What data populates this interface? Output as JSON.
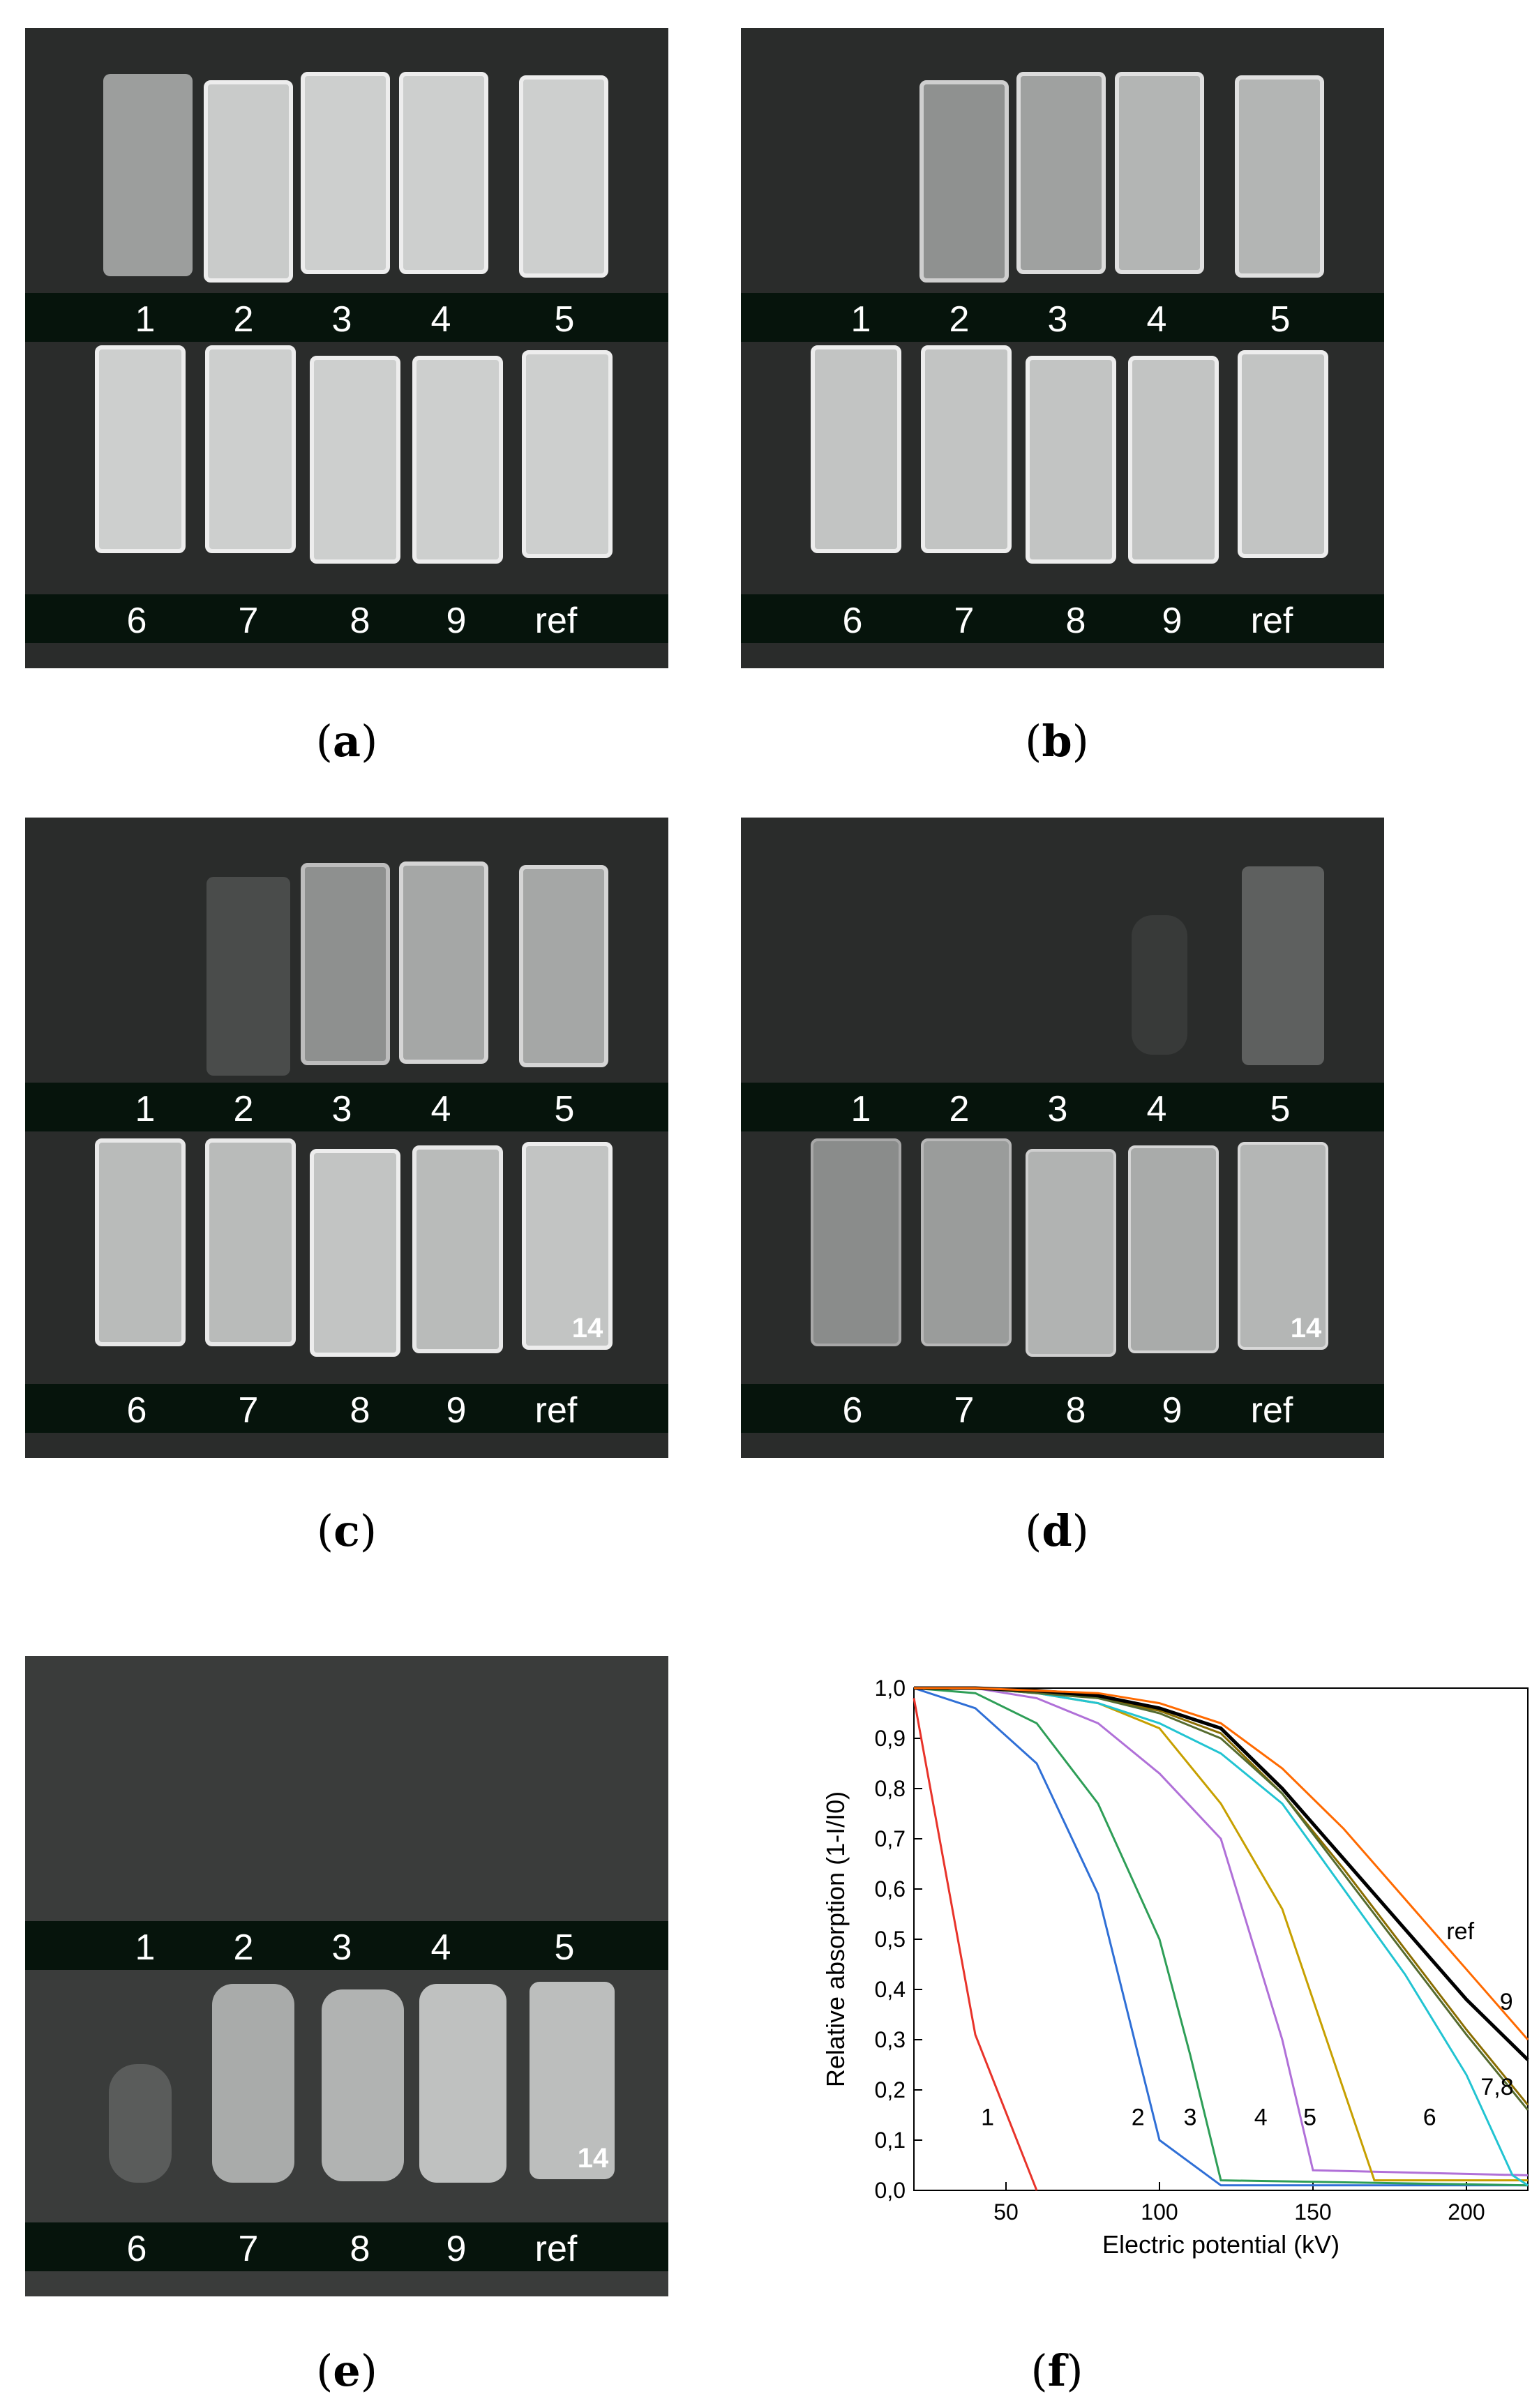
{
  "panels": [
    {
      "caption": "a",
      "top_labels": [
        "1",
        "2",
        "3",
        "4",
        "5"
      ],
      "bottom_labels": [
        "6",
        "7",
        "8",
        "9",
        "ref"
      ]
    },
    {
      "caption": "b",
      "top_labels": [
        "1",
        "2",
        "3",
        "4",
        "5"
      ],
      "bottom_labels": [
        "6",
        "7",
        "8",
        "9",
        "ref"
      ]
    },
    {
      "caption": "c",
      "top_labels": [
        "1",
        "2",
        "3",
        "4",
        "5"
      ],
      "bottom_labels": [
        "6",
        "7",
        "8",
        "9",
        "ref"
      ],
      "marker": "14"
    },
    {
      "caption": "d",
      "top_labels": [
        "1",
        "2",
        "3",
        "4",
        "5"
      ],
      "bottom_labels": [
        "6",
        "7",
        "8",
        "9",
        "ref"
      ],
      "marker": "14"
    },
    {
      "caption": "e",
      "top_labels": [
        "1",
        "2",
        "3",
        "4",
        "5"
      ],
      "bottom_labels": [
        "6",
        "7",
        "8",
        "9",
        "ref"
      ],
      "marker": "14"
    }
  ],
  "chart_caption": "f",
  "chart_data": {
    "type": "line",
    "xlabel": "Electric potential (kV)",
    "ylabel": "Relative absorption (1-I/I0)",
    "xlim": [
      20,
      220
    ],
    "ylim": [
      0,
      1.0
    ],
    "xticks": [
      50,
      100,
      150,
      200
    ],
    "xtick_labels": [
      "50",
      "100",
      "150",
      "200"
    ],
    "yticks": [
      0,
      0.1,
      0.2,
      0.3,
      0.4,
      0.5,
      0.6,
      0.7,
      0.8,
      0.9,
      1.0
    ],
    "ytick_labels": [
      "0,0",
      "0,1",
      "0,2",
      "0,3",
      "0,4",
      "0,5",
      "0,6",
      "0,7",
      "0,8",
      "0,9",
      "1,0"
    ],
    "series": [
      {
        "name": "1",
        "color": "#e8332a",
        "x": [
          20,
          40,
          60
        ],
        "y": [
          0.98,
          0.31,
          0.0
        ]
      },
      {
        "name": "2",
        "color": "#2f6fd6",
        "x": [
          20,
          40,
          60,
          80,
          100,
          120,
          220
        ],
        "y": [
          1.0,
          0.96,
          0.85,
          0.59,
          0.1,
          0.01,
          0.01
        ]
      },
      {
        "name": "3",
        "color": "#2e9e57",
        "x": [
          20,
          40,
          60,
          80,
          100,
          110,
          120,
          220
        ],
        "y": [
          1.0,
          0.99,
          0.93,
          0.77,
          0.5,
          0.27,
          0.02,
          0.01
        ]
      },
      {
        "name": "4",
        "color": "#b070d8",
        "x": [
          20,
          40,
          60,
          80,
          100,
          120,
          140,
          150,
          220
        ],
        "y": [
          1.0,
          1.0,
          0.98,
          0.93,
          0.83,
          0.7,
          0.3,
          0.04,
          0.03
        ]
      },
      {
        "name": "5",
        "color": "#c7a000",
        "x": [
          20,
          40,
          60,
          80,
          100,
          120,
          140,
          160,
          170,
          220
        ],
        "y": [
          1.0,
          1.0,
          0.99,
          0.97,
          0.92,
          0.77,
          0.56,
          0.2,
          0.02,
          0.02
        ]
      },
      {
        "name": "6",
        "color": "#22c4d2",
        "x": [
          20,
          40,
          60,
          80,
          100,
          120,
          140,
          160,
          180,
          200,
          215,
          220
        ],
        "y": [
          1.0,
          1.0,
          0.99,
          0.97,
          0.93,
          0.87,
          0.77,
          0.6,
          0.43,
          0.23,
          0.03,
          0.01
        ]
      },
      {
        "name": "7",
        "color": "#8a6d00",
        "x": [
          20,
          40,
          60,
          80,
          100,
          120,
          140,
          160,
          180,
          200,
          220
        ],
        "y": [
          1.0,
          1.0,
          0.995,
          0.98,
          0.955,
          0.91,
          0.79,
          0.64,
          0.48,
          0.32,
          0.17
        ]
      },
      {
        "name": "8",
        "color": "#556b2f",
        "x": [
          20,
          40,
          60,
          80,
          100,
          120,
          140,
          160,
          180,
          200,
          220
        ],
        "y": [
          1.0,
          1.0,
          0.99,
          0.98,
          0.95,
          0.9,
          0.79,
          0.63,
          0.47,
          0.31,
          0.16
        ]
      },
      {
        "name": "9",
        "color": "#000000",
        "x": [
          20,
          40,
          60,
          80,
          100,
          120,
          140,
          160,
          180,
          200,
          220
        ],
        "y": [
          1.0,
          1.0,
          0.995,
          0.985,
          0.96,
          0.92,
          0.8,
          0.66,
          0.52,
          0.38,
          0.26
        ]
      },
      {
        "name": "ref",
        "color": "#ff6a00",
        "x": [
          20,
          40,
          60,
          80,
          100,
          120,
          140,
          160,
          180,
          200,
          220
        ],
        "y": [
          1.0,
          1.0,
          0.995,
          0.99,
          0.97,
          0.93,
          0.84,
          0.72,
          0.58,
          0.44,
          0.3
        ]
      }
    ],
    "annotations": [
      {
        "text": "1",
        "x": 44,
        "y": 0.13
      },
      {
        "text": "2",
        "x": 93,
        "y": 0.13
      },
      {
        "text": "3",
        "x": 110,
        "y": 0.13
      },
      {
        "text": "4",
        "x": 133,
        "y": 0.13
      },
      {
        "text": "5",
        "x": 149,
        "y": 0.13
      },
      {
        "text": "6",
        "x": 188,
        "y": 0.13
      },
      {
        "text": "7,8",
        "x": 210,
        "y": 0.19
      },
      {
        "text": "9",
        "x": 213,
        "y": 0.36
      },
      {
        "text": "ref",
        "x": 198,
        "y": 0.5
      }
    ]
  }
}
